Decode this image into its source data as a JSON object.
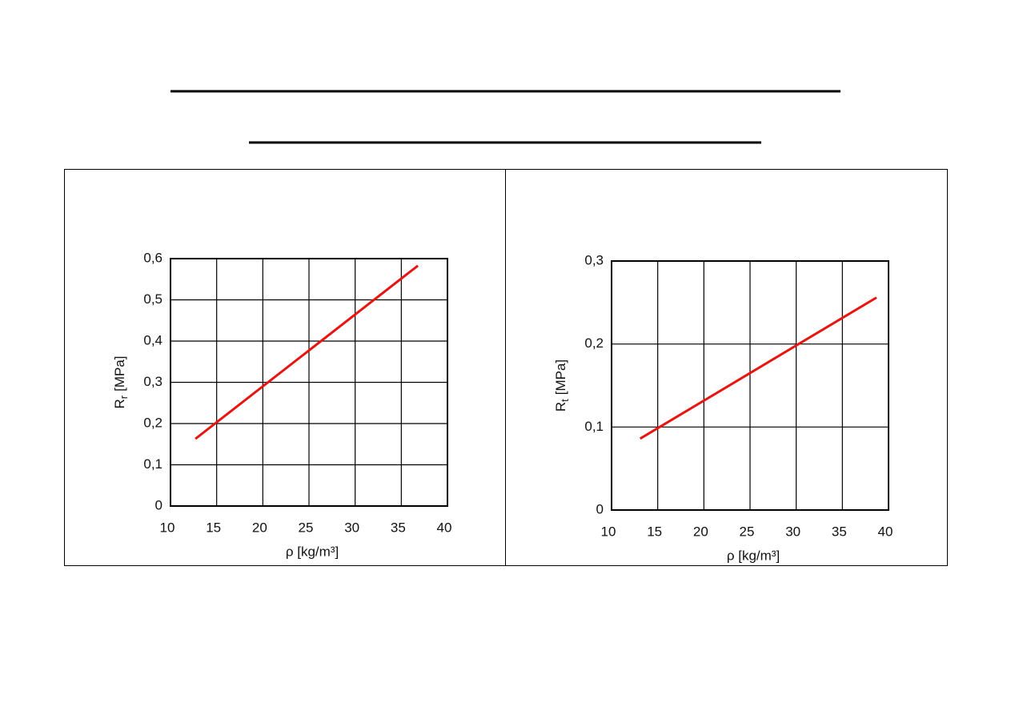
{
  "chart_data": [
    {
      "type": "line",
      "ylabel": "R",
      "ylabel_sub": "r",
      "ylabel_unit": "[MPa]",
      "xlabel": "ρ [kg/m³]",
      "xlim": [
        10,
        40
      ],
      "xticks": [
        10,
        15,
        20,
        25,
        30,
        35,
        40
      ],
      "ylim": [
        0,
        0.6
      ],
      "yticks": [
        0,
        {
          "value": 0.1,
          "label": "0,1"
        },
        {
          "value": 0.2,
          "label": "0,2"
        },
        {
          "value": 0.3,
          "label": "0,3"
        },
        {
          "value": 0.4,
          "label": "0,4"
        },
        {
          "value": 0.5,
          "label": "0,5"
        },
        {
          "value": 0.6,
          "label": "0,6"
        }
      ],
      "grid": true,
      "series": [
        {
          "color": "#e8140f",
          "x": [
            12.7,
            36.8
          ],
          "values": [
            0.163,
            0.583
          ]
        }
      ]
    },
    {
      "type": "line",
      "ylabel": "R",
      "ylabel_sub": "t",
      "ylabel_unit": "[MPa]",
      "xlabel": "ρ [kg/m³]",
      "xlim": [
        10,
        40
      ],
      "xticks": [
        10,
        15,
        20,
        25,
        30,
        35,
        40
      ],
      "ylim": [
        0,
        0.3
      ],
      "yticks": [
        0,
        {
          "value": 0.1,
          "label": "0,1"
        },
        {
          "value": 0.2,
          "label": "0,2"
        },
        {
          "value": 0.3,
          "label": "0,3"
        }
      ],
      "grid": true,
      "series": [
        {
          "color": "#e8140f",
          "x": [
            13.1,
            38.7
          ],
          "values": [
            0.086,
            0.256
          ]
        }
      ]
    }
  ]
}
